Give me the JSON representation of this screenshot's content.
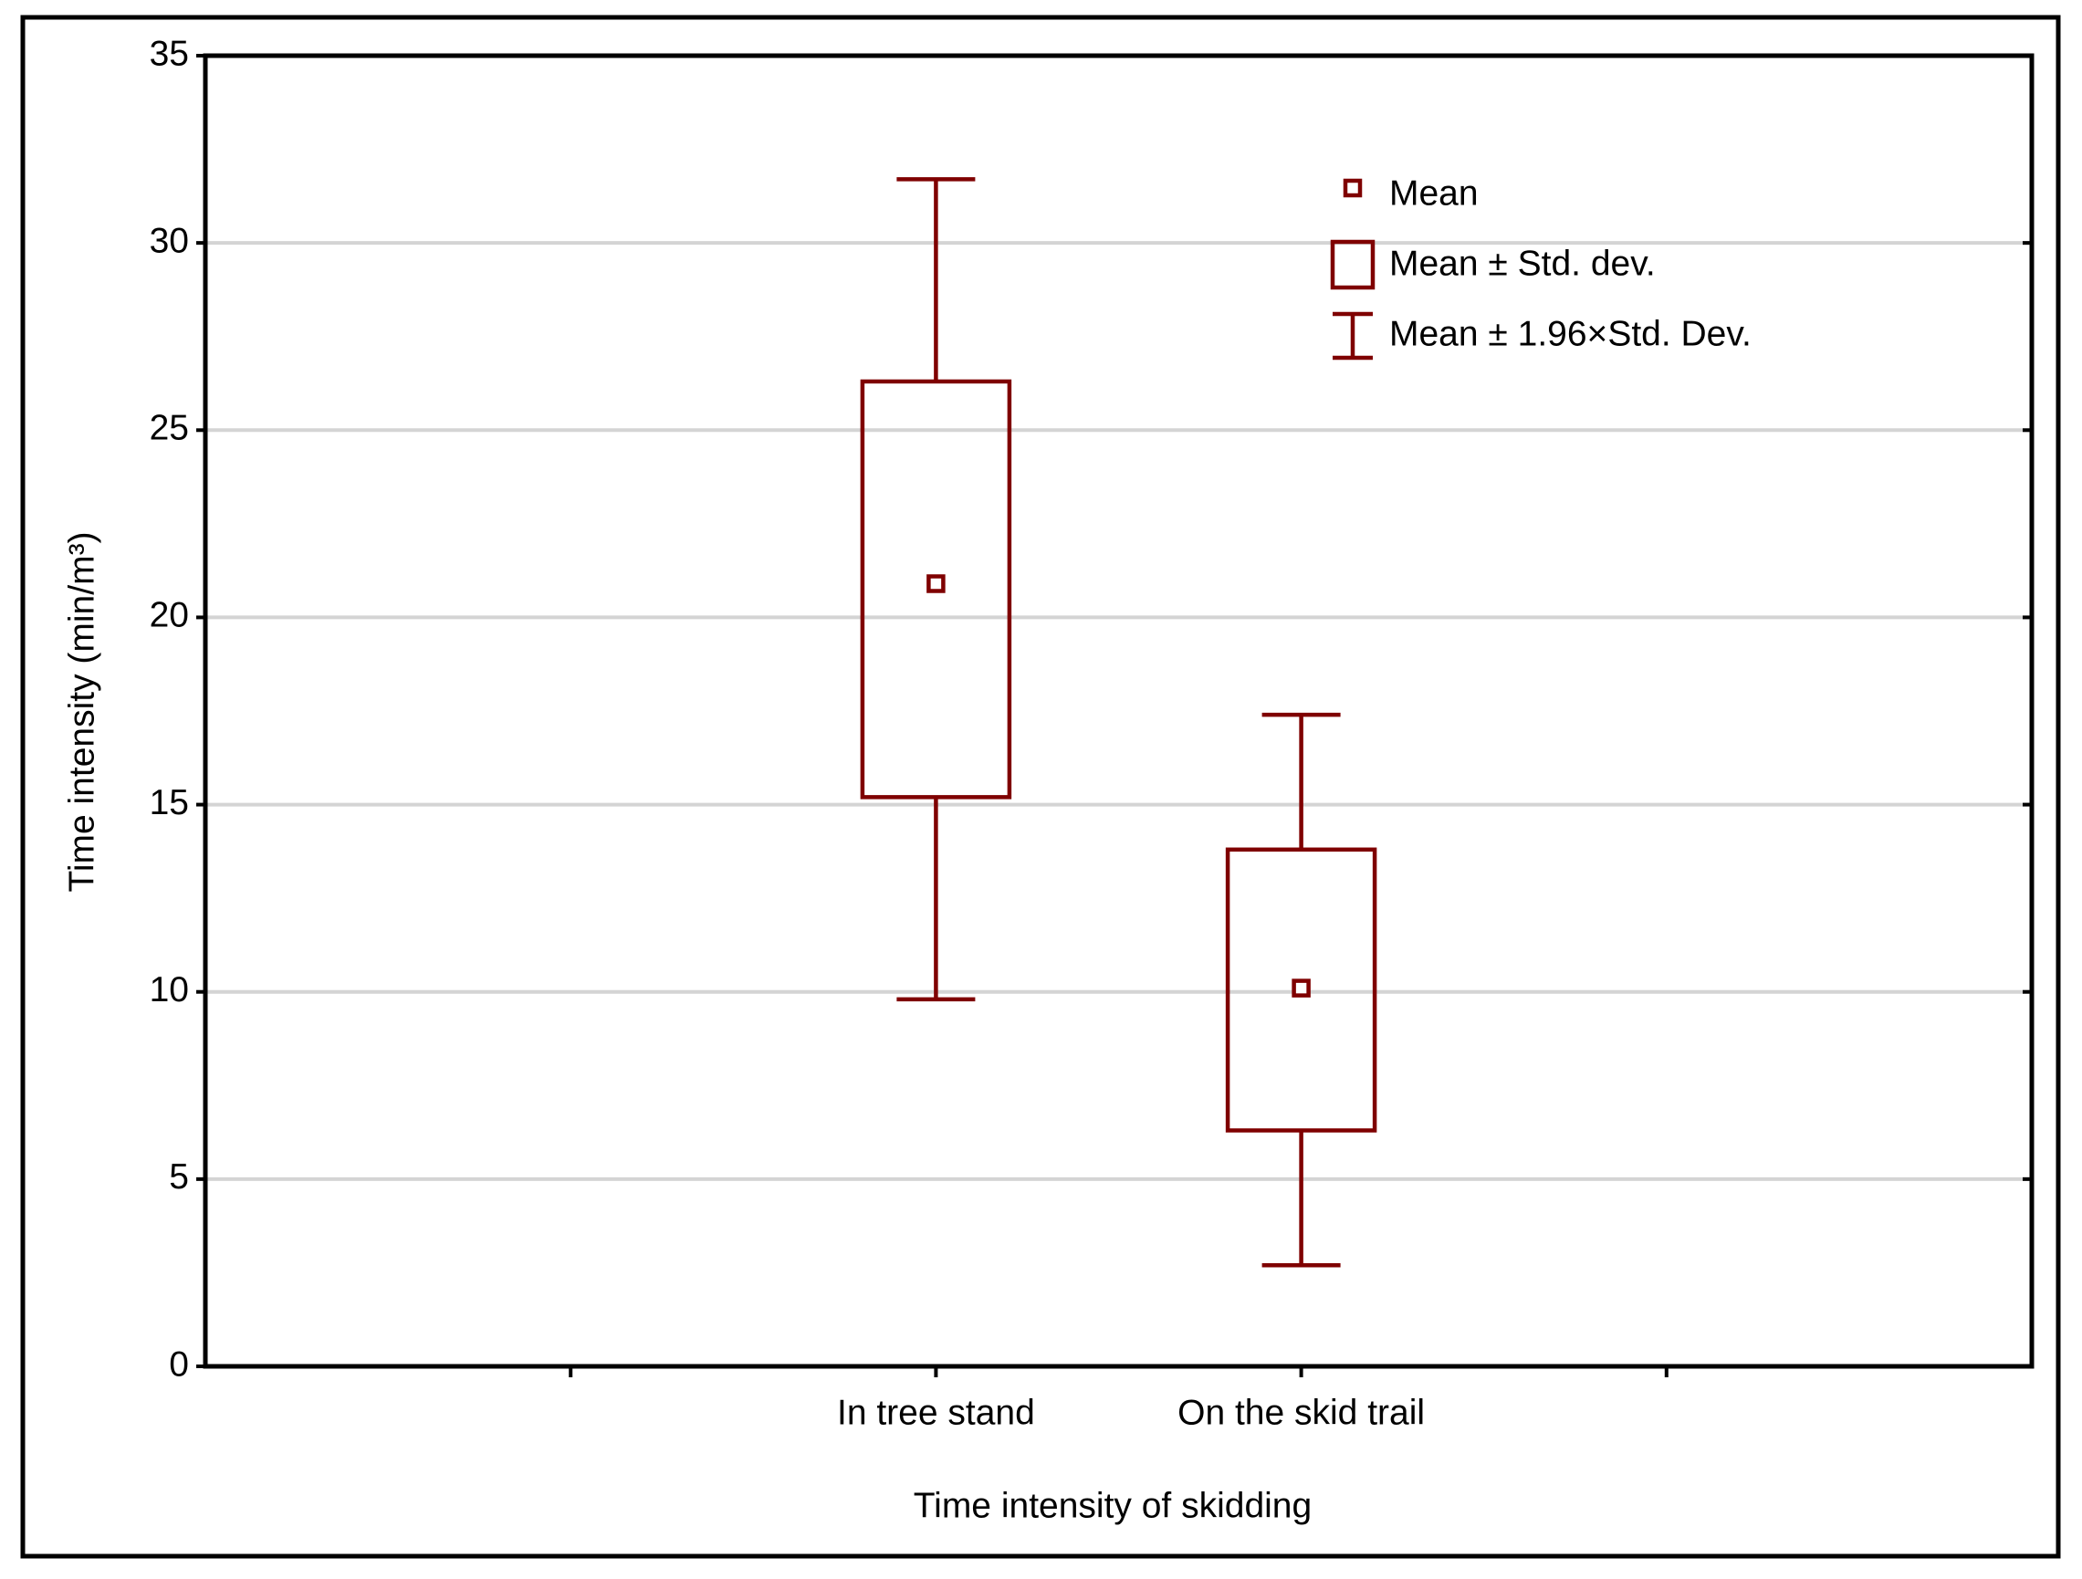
{
  "chart_data": {
    "type": "box",
    "xlabel": "Time intensity of skidding",
    "ylabel": "Time intensity (min/m³)",
    "categories": [
      null,
      "In tree  stand",
      "On the skid trail",
      null
    ],
    "mean": [
      null,
      20.9,
      10.1,
      null
    ],
    "sd_low": [
      null,
      15.2,
      6.3,
      null
    ],
    "sd_high": [
      null,
      26.3,
      13.8,
      null
    ],
    "ci_low": [
      null,
      9.8,
      2.7,
      null
    ],
    "ci_high": [
      null,
      31.7,
      17.4,
      null
    ],
    "color": "#7f0000",
    "legend": [
      "Mean",
      "Mean ± Std. dev.",
      "Mean ± 1.96×Std. Dev."
    ],
    "legend_position": "upper right",
    "ylim": [
      0,
      35
    ],
    "yticks": [
      0,
      5,
      10,
      15,
      20,
      25,
      30,
      35
    ],
    "grid": true
  }
}
